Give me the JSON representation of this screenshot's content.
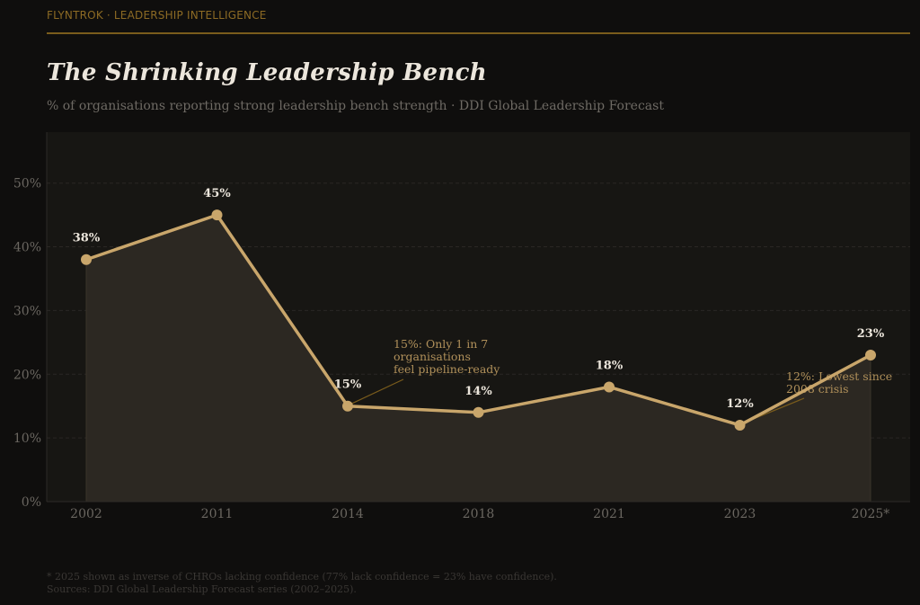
{
  "header": {
    "brand": "FLYNTROK · LEADERSHIP INTELLIGENCE",
    "title": "The Shrinking Leadership Bench",
    "subtitle": "% of organisations reporting strong leadership bench strength  ·  DDI Global Leadership Forecast"
  },
  "colors": {
    "background": "#0f0e0d",
    "plot_background": "#171613",
    "accent": "#c9a66b",
    "area_fill": "#2c2822",
    "brand": "#8c6a24",
    "annotation": "#b0905a",
    "annotation_line": "#7a5c1c"
  },
  "chart_data": {
    "type": "line",
    "title": "The Shrinking Leadership Bench",
    "subtitle": "% of organisations reporting strong leadership bench strength · DDI Global Leadership Forecast",
    "xlabel": "",
    "ylabel": "",
    "categories": [
      "2002",
      "2011",
      "2014",
      "2018",
      "2021",
      "2023",
      "2025*"
    ],
    "series": [
      {
        "name": "Strong leadership bench strength (%)",
        "values": [
          38,
          45,
          15,
          14,
          18,
          12,
          23
        ],
        "data_labels": [
          "38%",
          "45%",
          "15%",
          "14%",
          "18%",
          "12%",
          "23%"
        ]
      }
    ],
    "ylim": [
      0,
      58
    ],
    "yticks": [
      0,
      10,
      20,
      30,
      40,
      50
    ],
    "ytick_labels": [
      "0%",
      "10%",
      "20%",
      "30%",
      "40%",
      "50%"
    ],
    "grid": "horizontal-dashed",
    "area_fill": true,
    "legend": "none",
    "annotations": [
      {
        "category": "2014",
        "value": 15,
        "text_lines": [
          "15%: Only 1 in 7",
          "organisations",
          "feel pipeline-ready"
        ]
      },
      {
        "category": "2023",
        "value": 12,
        "text_lines": [
          "12%: Lowest since",
          "2008 crisis"
        ]
      }
    ]
  },
  "footnote": {
    "line1": "* 2025 shown as inverse of CHROs lacking confidence (77% lack confidence = 23% have confidence).",
    "line2": "Sources: DDI Global Leadership Forecast series (2002–2025)."
  }
}
